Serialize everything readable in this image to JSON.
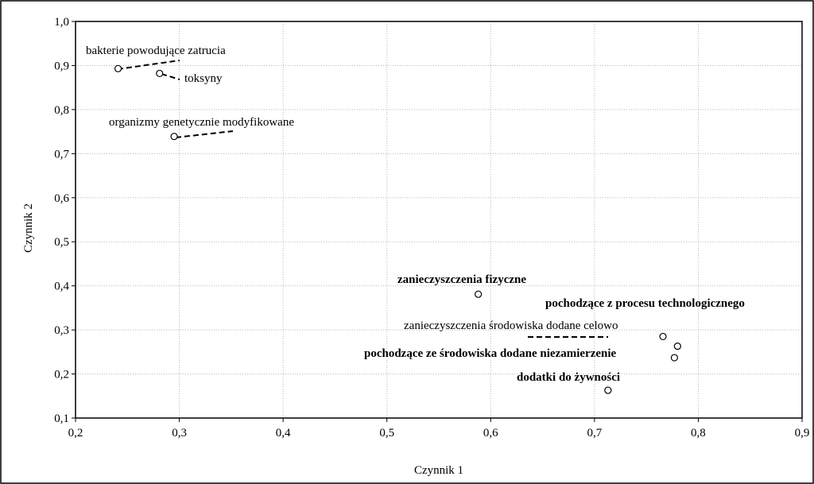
{
  "chart_data": {
    "type": "scatter",
    "xlabel": "Czynnik 1",
    "ylabel": "Czynnik 2",
    "xlim": [
      0.2,
      0.9
    ],
    "ylim": [
      0.1,
      1.0
    ],
    "grid": true,
    "x_ticks": [
      "0,2",
      "0,3",
      "0,4",
      "0,5",
      "0,6",
      "0,7",
      "0,8",
      "0,9"
    ],
    "y_ticks": [
      "0,1",
      "0,2",
      "0,3",
      "0,4",
      "0,5",
      "0,6",
      "0,7",
      "0,8",
      "0,9",
      "1,0"
    ],
    "points": [
      {
        "x": 0.241,
        "y": 0.893,
        "label": "bakterie powodujące zatrucia"
      },
      {
        "x": 0.281,
        "y": 0.882,
        "label": "toksyny"
      },
      {
        "x": 0.295,
        "y": 0.739,
        "label": "organizmy genetycznie modyfikowane"
      },
      {
        "x": 0.588,
        "y": 0.381,
        "label": "zanieczyszczenia fizyczne"
      },
      {
        "x": 0.78,
        "y": 0.263,
        "label": "pochodzące z procesu technologicznego"
      },
      {
        "x": 0.766,
        "y": 0.285,
        "label": "zanieczyszczenia środowiska dodane celowo"
      },
      {
        "x": 0.777,
        "y": 0.237,
        "label": "pochodzące ze środowiska dodane niezamierzenie"
      },
      {
        "x": 0.713,
        "y": 0.163,
        "label": "dodatki do żywności"
      }
    ]
  }
}
